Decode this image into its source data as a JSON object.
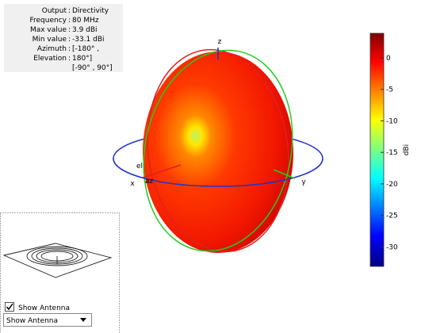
{
  "info": {
    "rows": [
      {
        "label": "Output",
        "value": "Directivity"
      },
      {
        "label": "Frequency",
        "value": "80 MHz"
      },
      {
        "label": "Max value",
        "value": "3.9 dBi"
      },
      {
        "label": "Min value",
        "value": "-33.1 dBi"
      },
      {
        "label": "Azimuth",
        "value": "[-180° ,"
      },
      {
        "label": "Elevation",
        "value": "180°]"
      }
    ],
    "continuation": "[-90° , 90°]"
  },
  "axes": {
    "z": "z",
    "x": "x",
    "y": "y",
    "az": "az",
    "el": "el"
  },
  "colorbar": {
    "label": "dBi",
    "lim": [
      -33.1,
      3.9
    ],
    "ticks": [
      0,
      -5,
      -10,
      -15,
      -20,
      -25,
      -30
    ]
  },
  "controls": {
    "checkbox": "Show Antenna",
    "dropdown": "Show Antenna"
  }
}
